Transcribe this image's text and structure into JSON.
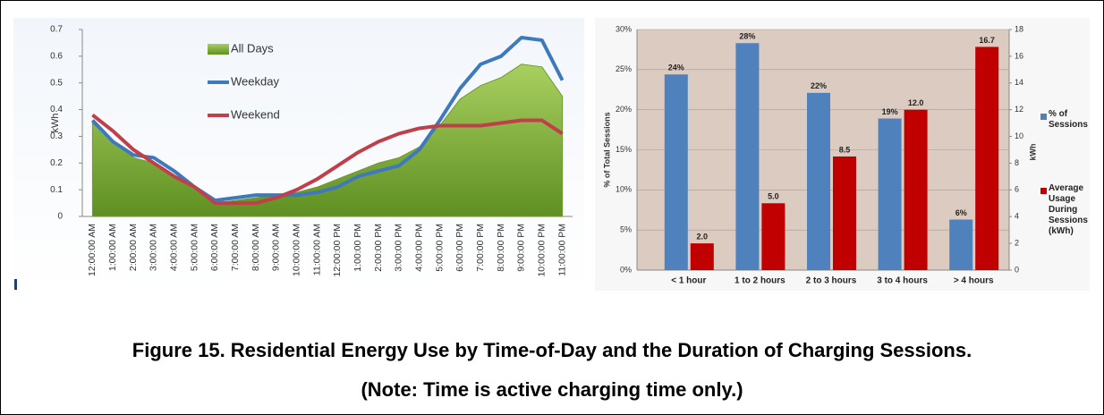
{
  "chart_data": [
    {
      "type": "line",
      "ylabel": "kWh",
      "categories": [
        "12:00:00 AM",
        "1:00:00 AM",
        "2:00:00 AM",
        "3:00:00 AM",
        "4:00:00 AM",
        "5:00:00 AM",
        "6:00:00 AM",
        "7:00:00 AM",
        "8:00:00 AM",
        "9:00:00 AM",
        "10:00:00 AM",
        "11:00:00 AM",
        "12:00:00 PM",
        "1:00:00 PM",
        "2:00:00 PM",
        "3:00:00 PM",
        "4:00:00 PM",
        "5:00:00 PM",
        "6:00:00 PM",
        "7:00:00 PM",
        "8:00:00 PM",
        "9:00:00 PM",
        "10:00:00 PM",
        "11:00:00 PM"
      ],
      "series": [
        {
          "name": "All Days",
          "type": "area",
          "color": "#8fbf3f",
          "values": [
            0.35,
            0.28,
            0.22,
            0.2,
            0.15,
            0.1,
            0.05,
            0.06,
            0.07,
            0.08,
            0.09,
            0.11,
            0.14,
            0.17,
            0.2,
            0.22,
            0.26,
            0.34,
            0.44,
            0.49,
            0.52,
            0.57,
            0.56,
            0.45
          ]
        },
        {
          "name": "Weekday",
          "type": "line",
          "color": "#3f79bd",
          "values": [
            0.36,
            0.28,
            0.23,
            0.22,
            0.17,
            0.11,
            0.06,
            0.07,
            0.08,
            0.08,
            0.08,
            0.09,
            0.11,
            0.15,
            0.17,
            0.19,
            0.25,
            0.36,
            0.48,
            0.57,
            0.6,
            0.67,
            0.66,
            0.51
          ]
        },
        {
          "name": "Weekend",
          "type": "line",
          "color": "#c0404a",
          "values": [
            0.38,
            0.32,
            0.25,
            0.2,
            0.15,
            0.11,
            0.05,
            0.05,
            0.05,
            0.07,
            0.1,
            0.14,
            0.19,
            0.24,
            0.28,
            0.31,
            0.33,
            0.34,
            0.34,
            0.34,
            0.35,
            0.36,
            0.36,
            0.31
          ]
        }
      ],
      "ylim": [
        0,
        0.7
      ],
      "yticks": [
        0,
        0.1,
        0.2,
        0.3,
        0.4,
        0.5,
        0.6,
        0.7
      ],
      "legend": "upper-center"
    },
    {
      "type": "bar",
      "ylabel": "% of Total Sessions",
      "y2label": "kWh",
      "categories": [
        "< 1 hour",
        "1 to 2 hours",
        "2 to 3 hours",
        "3 to 4 hours",
        "> 4 hours"
      ],
      "series": [
        {
          "name": "% of Sessions",
          "color": "#4f81bd",
          "values": [
            24.4,
            28.3,
            22.1,
            18.9,
            6.3
          ],
          "value_labels": [
            "24%",
            "28%",
            "22%",
            "19%",
            "6%"
          ]
        },
        {
          "name": "Average Usage During Sessions (kWh)",
          "color": "#c00000",
          "axis": "y2",
          "values": [
            2.0,
            5.0,
            8.5,
            12.0,
            16.7
          ],
          "value_labels": [
            "2.0",
            "5.0",
            "8.5",
            "12.0",
            "16.7"
          ]
        }
      ],
      "ylim": [
        0,
        30
      ],
      "yticks": [
        {
          "value": 0,
          "label": "0%"
        },
        {
          "value": 5,
          "label": "5%"
        },
        {
          "value": 10,
          "label": "10%"
        },
        {
          "value": 15,
          "label": "15%"
        },
        {
          "value": 20,
          "label": "20%"
        },
        {
          "value": 25,
          "label": "25%"
        },
        {
          "value": 30,
          "label": "30%"
        }
      ],
      "y2lim": [
        0,
        18
      ],
      "y2ticks": [
        0,
        2,
        4,
        6,
        8,
        10,
        12,
        14,
        16,
        18
      ],
      "grid": true,
      "legend": "right"
    }
  ],
  "caption": {
    "title": "Figure 15. Residential Energy Use by Time-of-Day and the Duration of Charging Sessions.",
    "note": "(Note: Time is active charging time only.)"
  }
}
